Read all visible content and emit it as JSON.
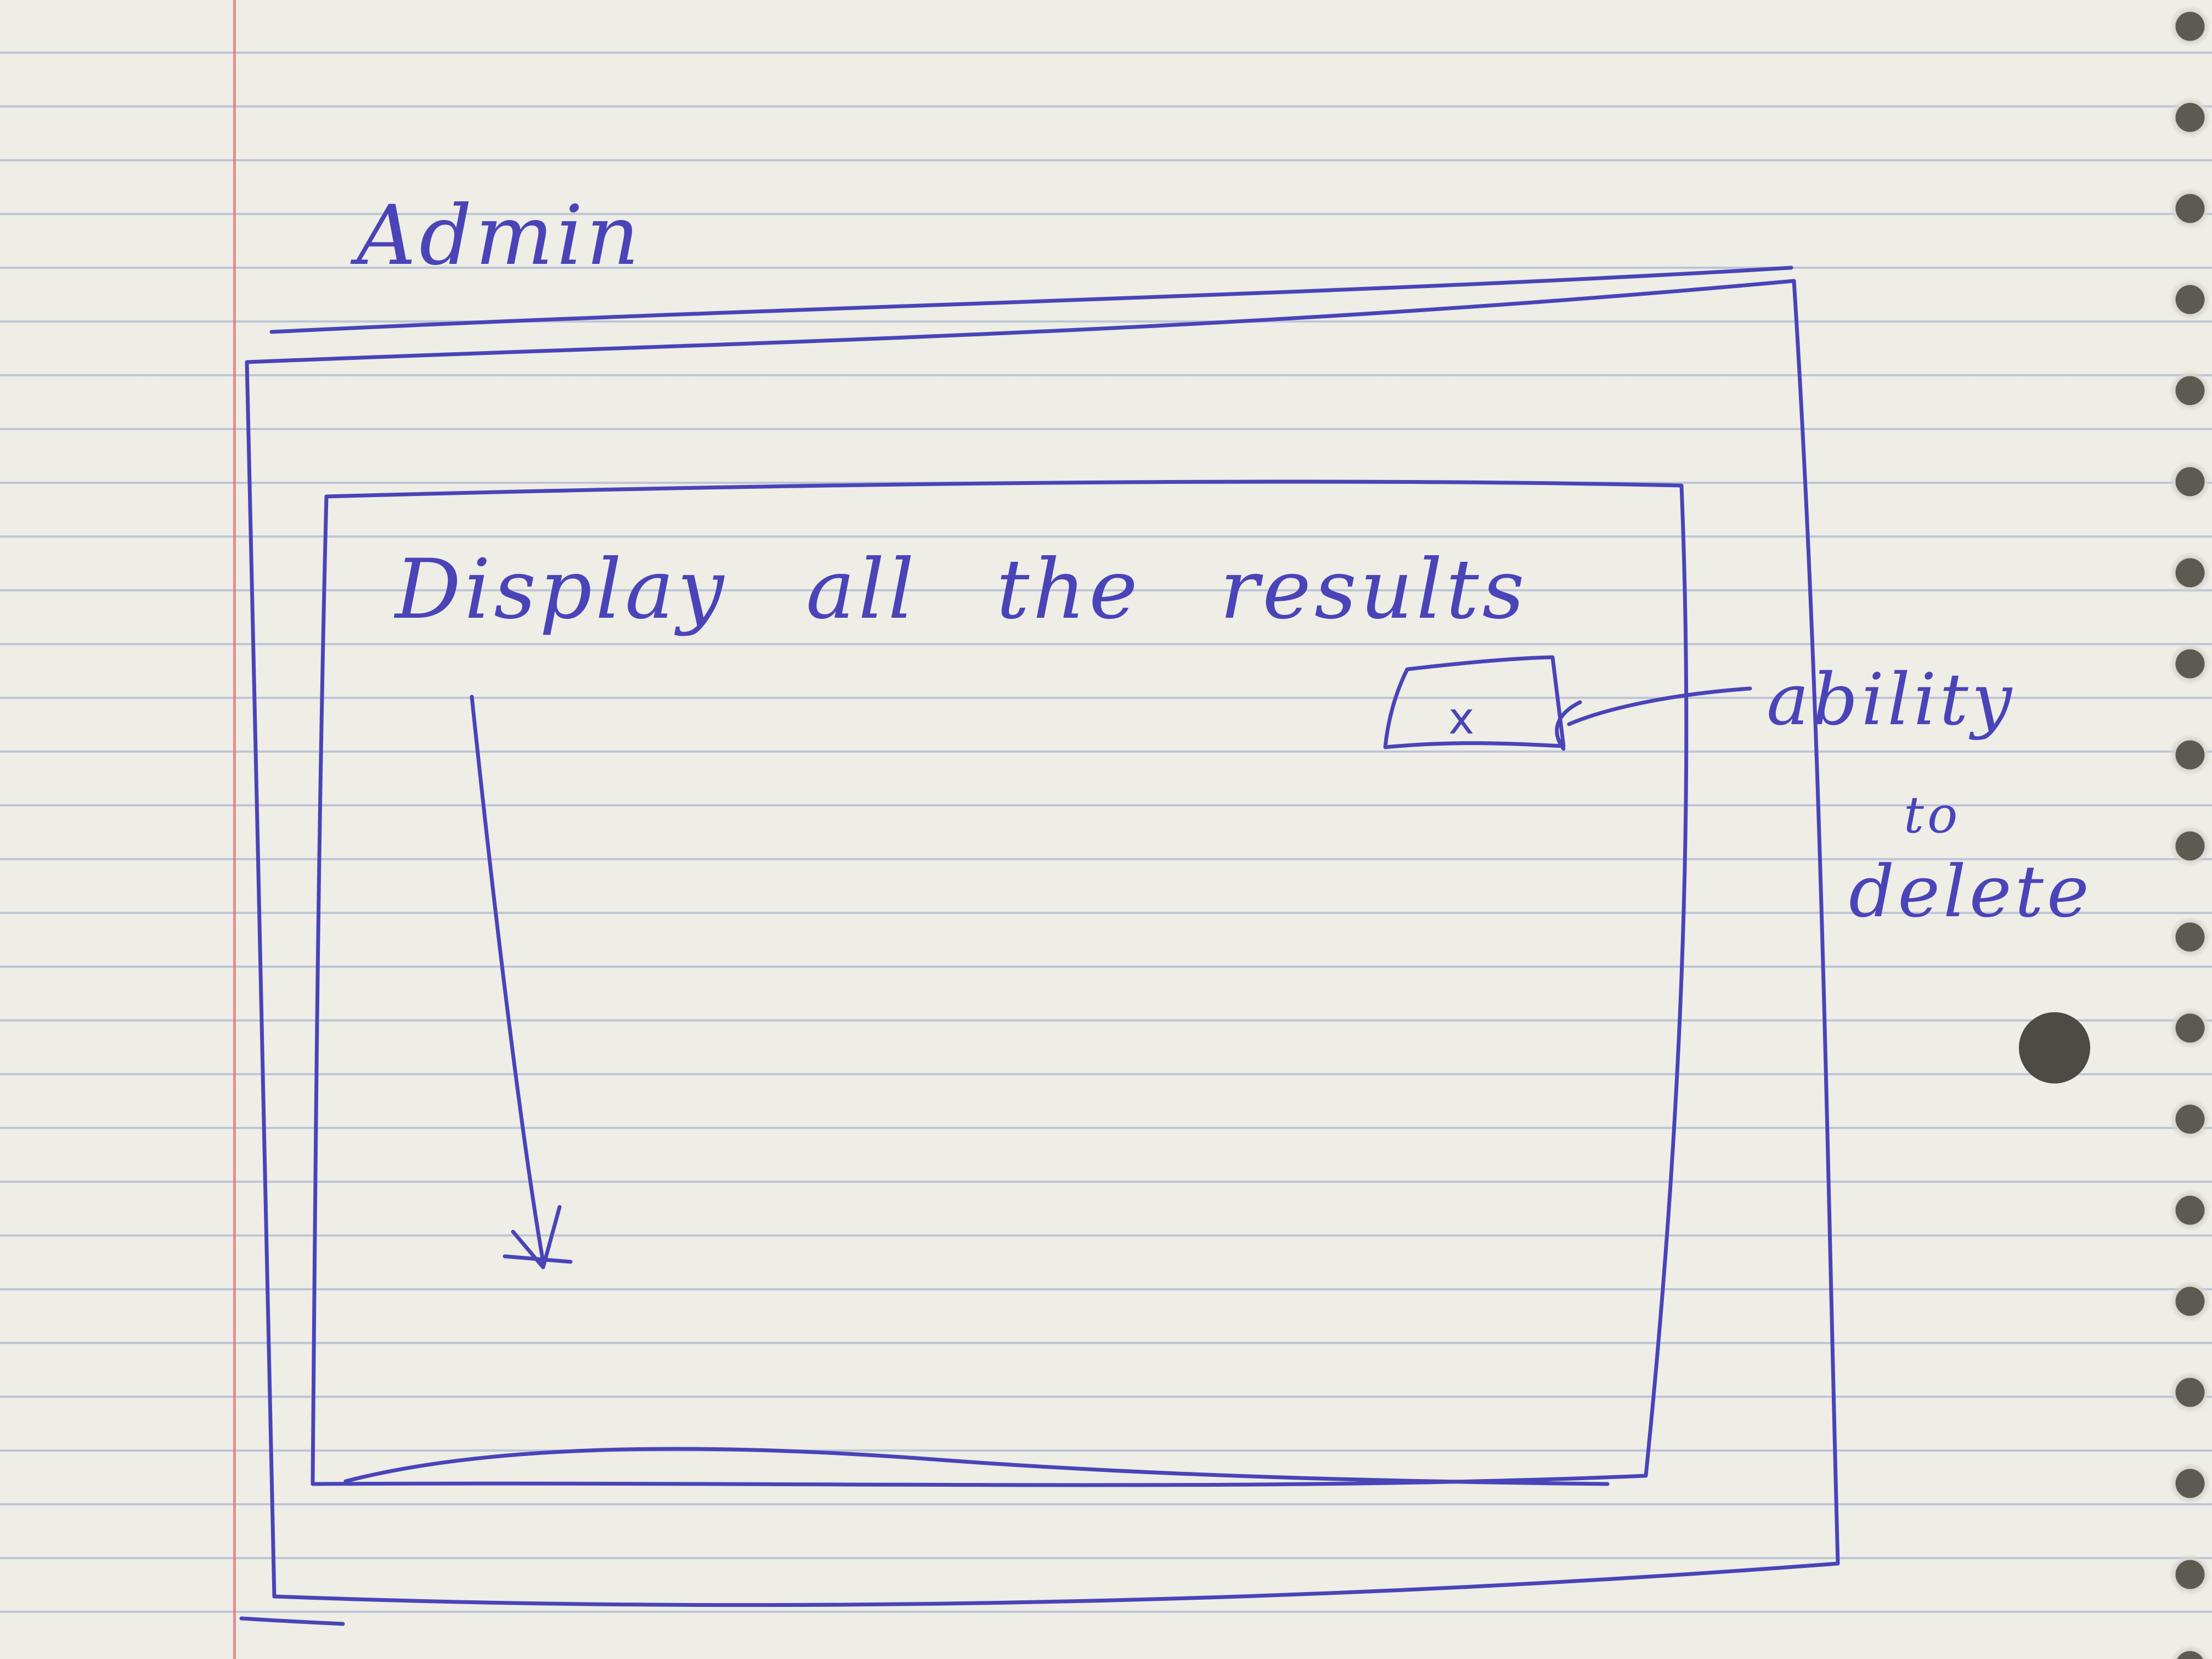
{
  "sketch": {
    "heading": "Admin",
    "results_label": "Display all the results",
    "delete_button_glyph": "x",
    "annotation": {
      "line1": "ability",
      "line2": "to",
      "line3": "delete"
    }
  },
  "icons": {
    "scroll_arrow": "arrow-down-icon",
    "pointer_arrow": "arrow-left-icon",
    "delete": "close-icon"
  },
  "colors": {
    "ink": "#4a44b8",
    "paper": "#eeede6",
    "rule_lines": "#96a5c8",
    "margin_line": "#e16e78"
  }
}
